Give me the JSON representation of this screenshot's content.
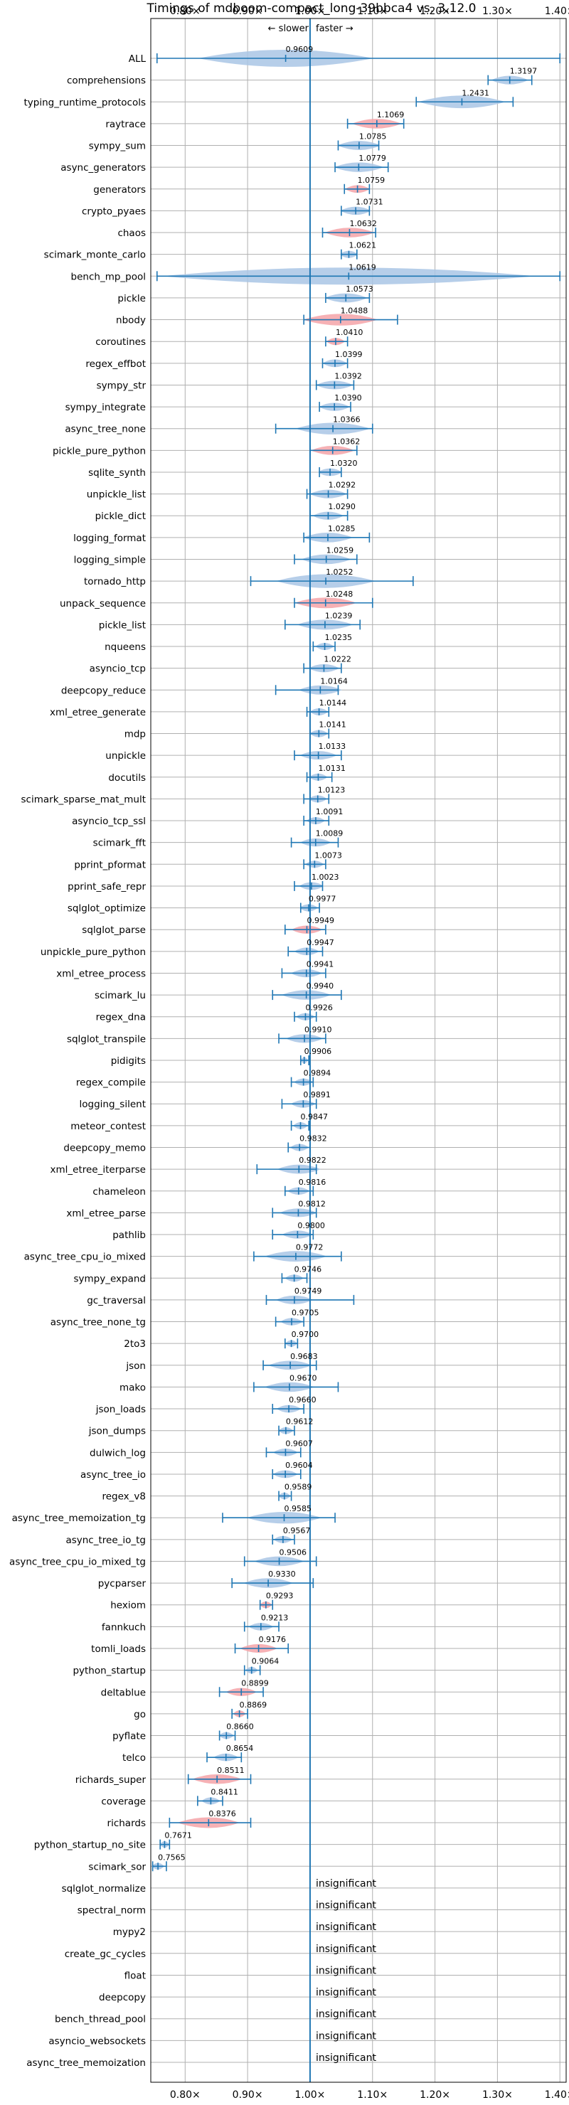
{
  "chart_data": {
    "type": "violin",
    "title": "Timings of mdboom-compact_long-39bbca4 vs. 3.12.0",
    "direction_labels": {
      "slower": "← slower",
      "faster": "faster →"
    },
    "xlim": [
      0.745,
      1.41
    ],
    "x_ticks": [
      0.8,
      0.9,
      1.0,
      1.1,
      1.2,
      1.3,
      1.4
    ],
    "x_tick_labels": [
      "0.80×",
      "0.90×",
      "1.00×",
      "1.10×",
      "1.20×",
      "1.30×",
      "1.40×"
    ],
    "grid": true,
    "reference_line": 1.0,
    "insignificant_label": "insignificant",
    "colors": {
      "faster": "#a9c6e5",
      "slower": "#f4a3a8",
      "line": "#1f77b4"
    },
    "rows": [
      {
        "name": "ALL",
        "value": 0.9609,
        "value_label": "0.9609",
        "low": 0.755,
        "high": 1.4,
        "color": "faster",
        "spread": 0.14
      },
      {
        "name": "comprehensions",
        "value": 1.3197,
        "value_label": "1.3197",
        "low": 1.285,
        "high": 1.355,
        "color": "faster",
        "spread": 0.03
      },
      {
        "name": "typing_runtime_protocols",
        "value": 1.2431,
        "value_label": "1.2431",
        "low": 1.17,
        "high": 1.325,
        "color": "faster",
        "spread": 0.07
      },
      {
        "name": "raytrace",
        "value": 1.1069,
        "value_label": "1.1069",
        "low": 1.06,
        "high": 1.15,
        "color": "slower",
        "spread": 0.04
      },
      {
        "name": "sympy_sum",
        "value": 1.0785,
        "value_label": "1.0785",
        "low": 1.045,
        "high": 1.11,
        "color": "faster",
        "spread": 0.035
      },
      {
        "name": "async_generators",
        "value": 1.0779,
        "value_label": "1.0779",
        "low": 1.04,
        "high": 1.125,
        "color": "faster",
        "spread": 0.04
      },
      {
        "name": "generators",
        "value": 1.0759,
        "value_label": "1.0759",
        "low": 1.055,
        "high": 1.095,
        "color": "slower",
        "spread": 0.02
      },
      {
        "name": "crypto_pyaes",
        "value": 1.0731,
        "value_label": "1.0731",
        "low": 1.05,
        "high": 1.095,
        "color": "faster",
        "spread": 0.025
      },
      {
        "name": "chaos",
        "value": 1.0632,
        "value_label": "1.0632",
        "low": 1.02,
        "high": 1.105,
        "color": "slower",
        "spread": 0.04
      },
      {
        "name": "scimark_monte_carlo",
        "value": 1.0621,
        "value_label": "1.0621",
        "low": 1.05,
        "high": 1.075,
        "color": "faster",
        "spread": 0.015
      },
      {
        "name": "bench_mp_pool",
        "value": 1.0619,
        "value_label": "1.0619",
        "low": 0.755,
        "high": 1.4,
        "color": "faster",
        "spread": 0.3
      },
      {
        "name": "pickle",
        "value": 1.0573,
        "value_label": "1.0573",
        "low": 1.025,
        "high": 1.095,
        "color": "faster",
        "spread": 0.035
      },
      {
        "name": "nbody",
        "value": 1.0488,
        "value_label": "1.0488",
        "low": 0.99,
        "high": 1.14,
        "color": "slower",
        "spread": 0.06
      },
      {
        "name": "coroutines",
        "value": 1.041,
        "value_label": "1.0410",
        "low": 1.025,
        "high": 1.06,
        "color": "slower",
        "spread": 0.015
      },
      {
        "name": "regex_effbot",
        "value": 1.0399,
        "value_label": "1.0399",
        "low": 1.02,
        "high": 1.06,
        "color": "faster",
        "spread": 0.02
      },
      {
        "name": "sympy_str",
        "value": 1.0392,
        "value_label": "1.0392",
        "low": 1.01,
        "high": 1.07,
        "color": "faster",
        "spread": 0.03
      },
      {
        "name": "sympy_integrate",
        "value": 1.039,
        "value_label": "1.0390",
        "low": 1.015,
        "high": 1.065,
        "color": "faster",
        "spread": 0.025
      },
      {
        "name": "async_tree_none",
        "value": 1.0366,
        "value_label": "1.0366",
        "low": 0.945,
        "high": 1.1,
        "color": "faster",
        "spread": 0.06
      },
      {
        "name": "pickle_pure_python",
        "value": 1.0362,
        "value_label": "1.0362",
        "low": 1.0,
        "high": 1.075,
        "color": "slower",
        "spread": 0.035
      },
      {
        "name": "sqlite_synth",
        "value": 1.032,
        "value_label": "1.0320",
        "low": 1.015,
        "high": 1.05,
        "color": "faster",
        "spread": 0.02
      },
      {
        "name": "unpickle_list",
        "value": 1.0292,
        "value_label": "1.0292",
        "low": 0.995,
        "high": 1.06,
        "color": "faster",
        "spread": 0.03
      },
      {
        "name": "pickle_dict",
        "value": 1.029,
        "value_label": "1.0290",
        "low": 1.0,
        "high": 1.06,
        "color": "faster",
        "spread": 0.025
      },
      {
        "name": "logging_format",
        "value": 1.0285,
        "value_label": "1.0285",
        "low": 0.99,
        "high": 1.095,
        "color": "faster",
        "spread": 0.04
      },
      {
        "name": "logging_simple",
        "value": 1.0259,
        "value_label": "1.0259",
        "low": 0.975,
        "high": 1.075,
        "color": "faster",
        "spread": 0.04
      },
      {
        "name": "tornado_http",
        "value": 1.0252,
        "value_label": "1.0252",
        "low": 0.905,
        "high": 1.165,
        "color": "faster",
        "spread": 0.08
      },
      {
        "name": "unpack_sequence",
        "value": 1.0248,
        "value_label": "1.0248",
        "low": 0.975,
        "high": 1.1,
        "color": "slower",
        "spread": 0.05
      },
      {
        "name": "pickle_list",
        "value": 1.0239,
        "value_label": "1.0239",
        "low": 0.96,
        "high": 1.08,
        "color": "faster",
        "spread": 0.045
      },
      {
        "name": "nqueens",
        "value": 1.0235,
        "value_label": "1.0235",
        "low": 1.005,
        "high": 1.04,
        "color": "faster",
        "spread": 0.015
      },
      {
        "name": "asyncio_tcp",
        "value": 1.0222,
        "value_label": "1.0222",
        "low": 0.99,
        "high": 1.05,
        "color": "faster",
        "spread": 0.025
      },
      {
        "name": "deepcopy_reduce",
        "value": 1.0164,
        "value_label": "1.0164",
        "low": 0.945,
        "high": 1.045,
        "color": "faster",
        "spread": 0.035
      },
      {
        "name": "xml_etree_generate",
        "value": 1.0144,
        "value_label": "1.0144",
        "low": 0.995,
        "high": 1.03,
        "color": "faster",
        "spread": 0.015
      },
      {
        "name": "mdp",
        "value": 1.0141,
        "value_label": "1.0141",
        "low": 1.0,
        "high": 1.03,
        "color": "faster",
        "spread": 0.015
      },
      {
        "name": "unpickle",
        "value": 1.0133,
        "value_label": "1.0133",
        "low": 0.975,
        "high": 1.05,
        "color": "faster",
        "spread": 0.03
      },
      {
        "name": "docutils",
        "value": 1.0131,
        "value_label": "1.0131",
        "low": 0.995,
        "high": 1.035,
        "color": "faster",
        "spread": 0.015
      },
      {
        "name": "scimark_sparse_mat_mult",
        "value": 1.0123,
        "value_label": "1.0123",
        "low": 0.99,
        "high": 1.03,
        "color": "faster",
        "spread": 0.015
      },
      {
        "name": "asyncio_tcp_ssl",
        "value": 1.0091,
        "value_label": "1.0091",
        "low": 0.99,
        "high": 1.03,
        "color": "faster",
        "spread": 0.015
      },
      {
        "name": "scimark_fft",
        "value": 1.0089,
        "value_label": "1.0089",
        "low": 0.97,
        "high": 1.045,
        "color": "faster",
        "spread": 0.025
      },
      {
        "name": "pprint_pformat",
        "value": 1.0073,
        "value_label": "1.0073",
        "low": 0.99,
        "high": 1.025,
        "color": "faster",
        "spread": 0.015
      },
      {
        "name": "pprint_safe_repr",
        "value": 1.0023,
        "value_label": "1.0023",
        "low": 0.975,
        "high": 1.02,
        "color": "faster",
        "spread": 0.02
      },
      {
        "name": "sqlglot_optimize",
        "value": 0.9977,
        "value_label": "0.9977",
        "low": 0.985,
        "high": 1.015,
        "color": "faster",
        "spread": 0.015
      },
      {
        "name": "sqlglot_parse",
        "value": 0.9949,
        "value_label": "0.9949",
        "low": 0.96,
        "high": 1.025,
        "color": "slower",
        "spread": 0.025
      },
      {
        "name": "unpickle_pure_python",
        "value": 0.9947,
        "value_label": "0.9947",
        "low": 0.965,
        "high": 1.02,
        "color": "faster",
        "spread": 0.02
      },
      {
        "name": "xml_etree_process",
        "value": 0.9941,
        "value_label": "0.9941",
        "low": 0.955,
        "high": 1.025,
        "color": "faster",
        "spread": 0.025
      },
      {
        "name": "scimark_lu",
        "value": 0.994,
        "value_label": "0.9940",
        "low": 0.94,
        "high": 1.05,
        "color": "faster",
        "spread": 0.04
      },
      {
        "name": "regex_dna",
        "value": 0.9926,
        "value_label": "0.9926",
        "low": 0.975,
        "high": 1.01,
        "color": "faster",
        "spread": 0.015
      },
      {
        "name": "sqlglot_transpile",
        "value": 0.991,
        "value_label": "0.9910",
        "low": 0.95,
        "high": 1.025,
        "color": "faster",
        "spread": 0.03
      },
      {
        "name": "pidigits",
        "value": 0.9906,
        "value_label": "0.9906",
        "low": 0.985,
        "high": 0.998,
        "color": "faster",
        "spread": 0.006
      },
      {
        "name": "regex_compile",
        "value": 0.9894,
        "value_label": "0.9894",
        "low": 0.97,
        "high": 1.005,
        "color": "faster",
        "spread": 0.015
      },
      {
        "name": "logging_silent",
        "value": 0.9891,
        "value_label": "0.9891",
        "low": 0.955,
        "high": 1.01,
        "color": "faster",
        "spread": 0.02
      },
      {
        "name": "meteor_contest",
        "value": 0.9847,
        "value_label": "0.9847",
        "low": 0.97,
        "high": 0.998,
        "color": "faster",
        "spread": 0.012
      },
      {
        "name": "deepcopy_memo",
        "value": 0.9832,
        "value_label": "0.9832",
        "low": 0.965,
        "high": 1.0,
        "color": "faster",
        "spread": 0.015
      },
      {
        "name": "xml_etree_iterparse",
        "value": 0.9822,
        "value_label": "0.9822",
        "low": 0.915,
        "high": 1.01,
        "color": "faster",
        "spread": 0.035
      },
      {
        "name": "chameleon",
        "value": 0.9816,
        "value_label": "0.9816",
        "low": 0.96,
        "high": 1.005,
        "color": "faster",
        "spread": 0.018
      },
      {
        "name": "xml_etree_parse",
        "value": 0.9812,
        "value_label": "0.9812",
        "low": 0.94,
        "high": 1.01,
        "color": "faster",
        "spread": 0.03
      },
      {
        "name": "pathlib",
        "value": 0.98,
        "value_label": "0.9800",
        "low": 0.94,
        "high": 1.005,
        "color": "faster",
        "spread": 0.025
      },
      {
        "name": "async_tree_cpu_io_mixed",
        "value": 0.9772,
        "value_label": "0.9772",
        "low": 0.91,
        "high": 1.05,
        "color": "faster",
        "spread": 0.05
      },
      {
        "name": "sympy_expand",
        "value": 0.9746,
        "value_label": "0.9746",
        "low": 0.955,
        "high": 0.995,
        "color": "faster",
        "spread": 0.015
      },
      {
        "name": "gc_traversal",
        "value": 0.9749,
        "value_label": "0.9749",
        "low": 0.93,
        "high": 1.07,
        "color": "faster",
        "spread": 0.03
      },
      {
        "name": "async_tree_none_tg",
        "value": 0.9705,
        "value_label": "0.9705",
        "low": 0.945,
        "high": 0.99,
        "color": "faster",
        "spread": 0.018
      },
      {
        "name": "2to3",
        "value": 0.97,
        "value_label": "0.9700",
        "low": 0.96,
        "high": 0.98,
        "color": "faster",
        "spread": 0.01
      },
      {
        "name": "json",
        "value": 0.9683,
        "value_label": "0.9683",
        "low": 0.925,
        "high": 1.01,
        "color": "faster",
        "spread": 0.035
      },
      {
        "name": "mako",
        "value": 0.967,
        "value_label": "0.9670",
        "low": 0.91,
        "high": 1.045,
        "color": "faster",
        "spread": 0.04
      },
      {
        "name": "json_loads",
        "value": 0.966,
        "value_label": "0.9660",
        "low": 0.94,
        "high": 0.99,
        "color": "faster",
        "spread": 0.02
      },
      {
        "name": "json_dumps",
        "value": 0.9612,
        "value_label": "0.9612",
        "low": 0.95,
        "high": 0.975,
        "color": "faster",
        "spread": 0.012
      },
      {
        "name": "dulwich_log",
        "value": 0.9607,
        "value_label": "0.9607",
        "low": 0.93,
        "high": 0.985,
        "color": "faster",
        "spread": 0.02
      },
      {
        "name": "async_tree_io",
        "value": 0.9604,
        "value_label": "0.9604",
        "low": 0.94,
        "high": 0.985,
        "color": "faster",
        "spread": 0.02
      },
      {
        "name": "regex_v8",
        "value": 0.9589,
        "value_label": "0.9589",
        "low": 0.95,
        "high": 0.97,
        "color": "faster",
        "spread": 0.01
      },
      {
        "name": "async_tree_memoization_tg",
        "value": 0.9585,
        "value_label": "0.9585",
        "low": 0.86,
        "high": 1.04,
        "color": "faster",
        "spread": 0.06
      },
      {
        "name": "async_tree_io_tg",
        "value": 0.9567,
        "value_label": "0.9567",
        "low": 0.94,
        "high": 0.975,
        "color": "faster",
        "spread": 0.015
      },
      {
        "name": "async_tree_cpu_io_mixed_tg",
        "value": 0.9506,
        "value_label": "0.9506",
        "low": 0.895,
        "high": 1.01,
        "color": "faster",
        "spread": 0.04
      },
      {
        "name": "pycparser",
        "value": 0.933,
        "value_label": "0.9330",
        "low": 0.875,
        "high": 1.005,
        "color": "faster",
        "spread": 0.04
      },
      {
        "name": "hexiom",
        "value": 0.9293,
        "value_label": "0.9293",
        "low": 0.92,
        "high": 0.94,
        "color": "slower",
        "spread": 0.01
      },
      {
        "name": "fannkuch",
        "value": 0.9213,
        "value_label": "0.9213",
        "low": 0.895,
        "high": 0.95,
        "color": "faster",
        "spread": 0.02
      },
      {
        "name": "tomli_loads",
        "value": 0.9176,
        "value_label": "0.9176",
        "low": 0.88,
        "high": 0.965,
        "color": "slower",
        "spread": 0.03
      },
      {
        "name": "python_startup",
        "value": 0.9064,
        "value_label": "0.9064",
        "low": 0.895,
        "high": 0.92,
        "color": "faster",
        "spread": 0.01
      },
      {
        "name": "deltablue",
        "value": 0.8899,
        "value_label": "0.8899",
        "low": 0.855,
        "high": 0.925,
        "color": "slower",
        "spread": 0.025
      },
      {
        "name": "go",
        "value": 0.8869,
        "value_label": "0.8869",
        "low": 0.875,
        "high": 0.9,
        "color": "slower",
        "spread": 0.01
      },
      {
        "name": "pyflate",
        "value": 0.866,
        "value_label": "0.8660",
        "low": 0.855,
        "high": 0.88,
        "color": "faster",
        "spread": 0.012
      },
      {
        "name": "telco",
        "value": 0.8654,
        "value_label": "0.8654",
        "low": 0.835,
        "high": 0.89,
        "color": "faster",
        "spread": 0.02
      },
      {
        "name": "richards_super",
        "value": 0.8511,
        "value_label": "0.8511",
        "low": 0.805,
        "high": 0.905,
        "color": "slower",
        "spread": 0.04
      },
      {
        "name": "coverage",
        "value": 0.8411,
        "value_label": "0.8411",
        "low": 0.82,
        "high": 0.86,
        "color": "faster",
        "spread": 0.015
      },
      {
        "name": "richards",
        "value": 0.8376,
        "value_label": "0.8376",
        "low": 0.775,
        "high": 0.905,
        "color": "slower",
        "spread": 0.05
      },
      {
        "name": "python_startup_no_site",
        "value": 0.7671,
        "value_label": "0.7671",
        "low": 0.76,
        "high": 0.775,
        "color": "faster",
        "spread": 0.008
      },
      {
        "name": "scimark_sor",
        "value": 0.7565,
        "value_label": "0.7565",
        "low": 0.748,
        "high": 0.77,
        "color": "faster",
        "spread": 0.01
      },
      {
        "name": "sqlglot_normalize",
        "insignificant": true
      },
      {
        "name": "spectral_norm",
        "insignificant": true
      },
      {
        "name": "mypy2",
        "insignificant": true
      },
      {
        "name": "create_gc_cycles",
        "insignificant": true
      },
      {
        "name": "float",
        "insignificant": true
      },
      {
        "name": "deepcopy",
        "insignificant": true
      },
      {
        "name": "bench_thread_pool",
        "insignificant": true
      },
      {
        "name": "asyncio_websockets",
        "insignificant": true
      },
      {
        "name": "async_tree_memoization",
        "insignificant": true
      }
    ]
  }
}
